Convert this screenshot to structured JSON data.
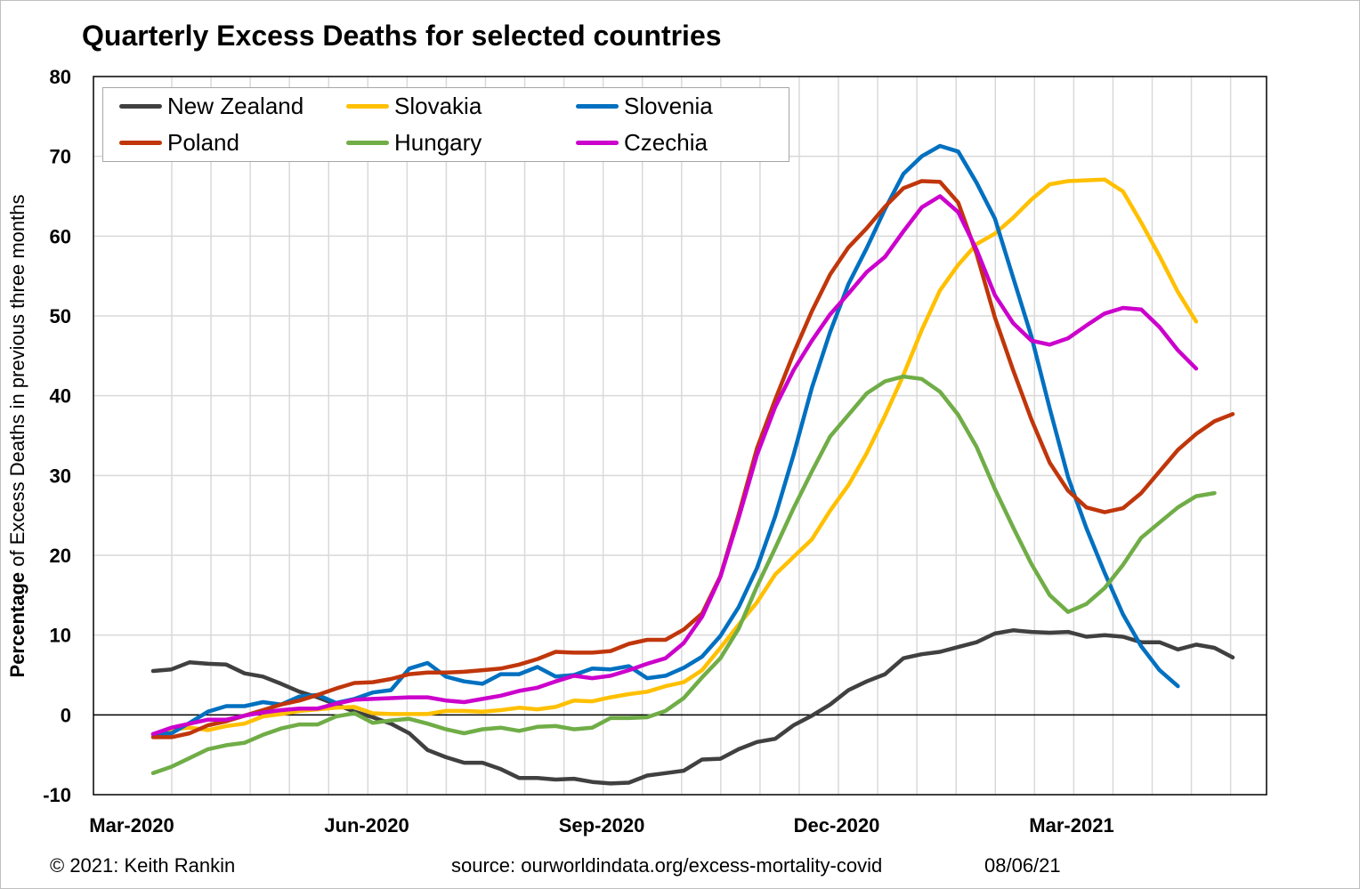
{
  "title": "Quarterly Excess Deaths for selected countries",
  "ylabel_bold": "Percentage",
  "ylabel_rest": " of Excess Deaths in previous three months",
  "footer": {
    "copyright": "© 2021: Keith Rankin",
    "source": "source: ourworldindata.org/excess-mortality-covid",
    "date": "08/06/21"
  },
  "chart_data": {
    "type": "line",
    "ylim": [
      -10,
      80
    ],
    "yticks": [
      -10,
      0,
      10,
      20,
      30,
      40,
      50,
      60,
      70,
      80
    ],
    "x_tick_labels": [
      "Mar-2020",
      "Jun-2020",
      "Sep-2020",
      "Dec-2020",
      "Mar-2021"
    ],
    "x_unit": "weeks",
    "grid": true,
    "legend_position": "top-left",
    "series": [
      {
        "name": "New Zealand",
        "color": "#404040",
        "start_week": 0,
        "values": [
          5.5,
          5.7,
          6.6,
          6.4,
          6.3,
          5.2,
          4.8,
          3.9,
          2.9,
          2.2,
          1.3,
          0.4,
          -0.3,
          -1.1,
          -2.3,
          -4.4,
          -5.3,
          -6.0,
          -6.0,
          -6.8,
          -7.9,
          -7.9,
          -8.1,
          -8.0,
          -8.4,
          -8.6,
          -8.5,
          -7.6,
          -7.3,
          -7.0,
          -5.6,
          -5.5,
          -4.3,
          -3.4,
          -3.0,
          -1.3,
          -0.1,
          1.3,
          3.1,
          4.2,
          5.1,
          7.1,
          7.6,
          7.9,
          8.5,
          9.1,
          10.2,
          10.6,
          10.4,
          10.3,
          10.4,
          9.8,
          10.0,
          9.8,
          9.1,
          9.1,
          8.2,
          8.8,
          8.4,
          7.2
        ]
      },
      {
        "name": "Slovakia",
        "color": "#ffc000",
        "start_week": 0,
        "values": [
          -2.5,
          -1.8,
          -1.6,
          -1.9,
          -1.4,
          -1.1,
          -0.2,
          0.1,
          0.5,
          0.7,
          0.9,
          1.0,
          0.2,
          0.1,
          0.1,
          0.1,
          0.5,
          0.5,
          0.4,
          0.6,
          0.9,
          0.7,
          1.0,
          1.8,
          1.7,
          2.2,
          2.6,
          2.9,
          3.6,
          4.1,
          5.6,
          8.4,
          11.3,
          14.1,
          17.6,
          19.8,
          22.0,
          25.6,
          28.8,
          32.8,
          37.5,
          42.6,
          48.2,
          53.2,
          56.4,
          59.0,
          60.3,
          62.3,
          64.6,
          66.5,
          66.9,
          67.0,
          67.1,
          65.6,
          61.7,
          57.5,
          53.0,
          49.3
        ]
      },
      {
        "name": "Slovenia",
        "color": "#0070c0",
        "start_week": 0,
        "values": [
          -2.4,
          -2.3,
          -1.0,
          0.4,
          1.1,
          1.1,
          1.6,
          1.3,
          2.3,
          2.5,
          1.5,
          2.0,
          2.8,
          3.1,
          5.8,
          6.5,
          4.8,
          4.2,
          3.9,
          5.1,
          5.1,
          6.0,
          4.8,
          5.0,
          5.8,
          5.7,
          6.1,
          4.6,
          4.9,
          5.9,
          7.3,
          9.9,
          13.5,
          18.4,
          24.9,
          32.6,
          41.0,
          48.0,
          54.0,
          58.5,
          63.4,
          67.8,
          70.0,
          71.3,
          70.6,
          66.7,
          62.2,
          54.8,
          47.4,
          38.4,
          29.8,
          23.4,
          17.8,
          12.6,
          8.6,
          5.6,
          3.6
        ]
      },
      {
        "name": "Poland",
        "color": "#c0360b",
        "start_week": 0,
        "values": [
          -2.8,
          -2.8,
          -2.3,
          -1.3,
          -0.8,
          -0.1,
          0.6,
          1.3,
          1.8,
          2.5,
          3.3,
          4.0,
          4.1,
          4.5,
          5.1,
          5.3,
          5.3,
          5.4,
          5.6,
          5.8,
          6.3,
          7.0,
          7.9,
          7.8,
          7.8,
          8.0,
          8.9,
          9.4,
          9.4,
          10.7,
          12.7,
          17.4,
          25.1,
          33.4,
          39.5,
          45.3,
          50.6,
          55.2,
          58.6,
          61.0,
          63.7,
          66.0,
          66.9,
          66.8,
          64.2,
          57.8,
          49.8,
          43.2,
          37.0,
          31.6,
          28.1,
          26.0,
          25.4,
          25.9,
          27.8,
          30.5,
          33.2,
          35.2,
          36.8,
          37.7
        ]
      },
      {
        "name": "Hungary",
        "color": "#70ad47",
        "start_week": 0,
        "values": [
          -7.3,
          -6.5,
          -5.4,
          -4.3,
          -3.8,
          -3.5,
          -2.5,
          -1.7,
          -1.2,
          -1.2,
          -0.2,
          0.2,
          -1.0,
          -0.7,
          -0.5,
          -1.1,
          -1.8,
          -2.3,
          -1.8,
          -1.6,
          -2.0,
          -1.5,
          -1.4,
          -1.8,
          -1.6,
          -0.4,
          -0.4,
          -0.3,
          0.5,
          2.1,
          4.7,
          7.1,
          10.8,
          16.1,
          20.9,
          25.9,
          30.5,
          34.9,
          37.6,
          40.3,
          41.8,
          42.4,
          42.1,
          40.5,
          37.6,
          33.6,
          28.3,
          23.5,
          18.9,
          15.0,
          12.9,
          13.9,
          15.9,
          18.8,
          22.2,
          24.1,
          26.0,
          27.4,
          27.8
        ]
      },
      {
        "name": "Czechia",
        "color": "#cc00cc",
        "start_week": 0,
        "values": [
          -2.4,
          -1.6,
          -1.1,
          -0.6,
          -0.6,
          -0.1,
          0.3,
          0.6,
          0.8,
          0.8,
          1.4,
          1.9,
          2.0,
          2.1,
          2.2,
          2.2,
          1.8,
          1.6,
          2.0,
          2.4,
          3.0,
          3.4,
          4.2,
          4.9,
          4.6,
          4.9,
          5.6,
          6.4,
          7.1,
          9.0,
          12.3,
          17.3,
          24.7,
          32.6,
          38.6,
          43.2,
          46.9,
          50.2,
          52.8,
          55.5,
          57.4,
          60.6,
          63.6,
          65.0,
          63.0,
          58.3,
          52.6,
          49.1,
          46.9,
          46.4,
          47.2,
          48.8,
          50.3,
          51.0,
          50.8,
          48.6,
          45.7,
          43.4
        ]
      }
    ]
  }
}
